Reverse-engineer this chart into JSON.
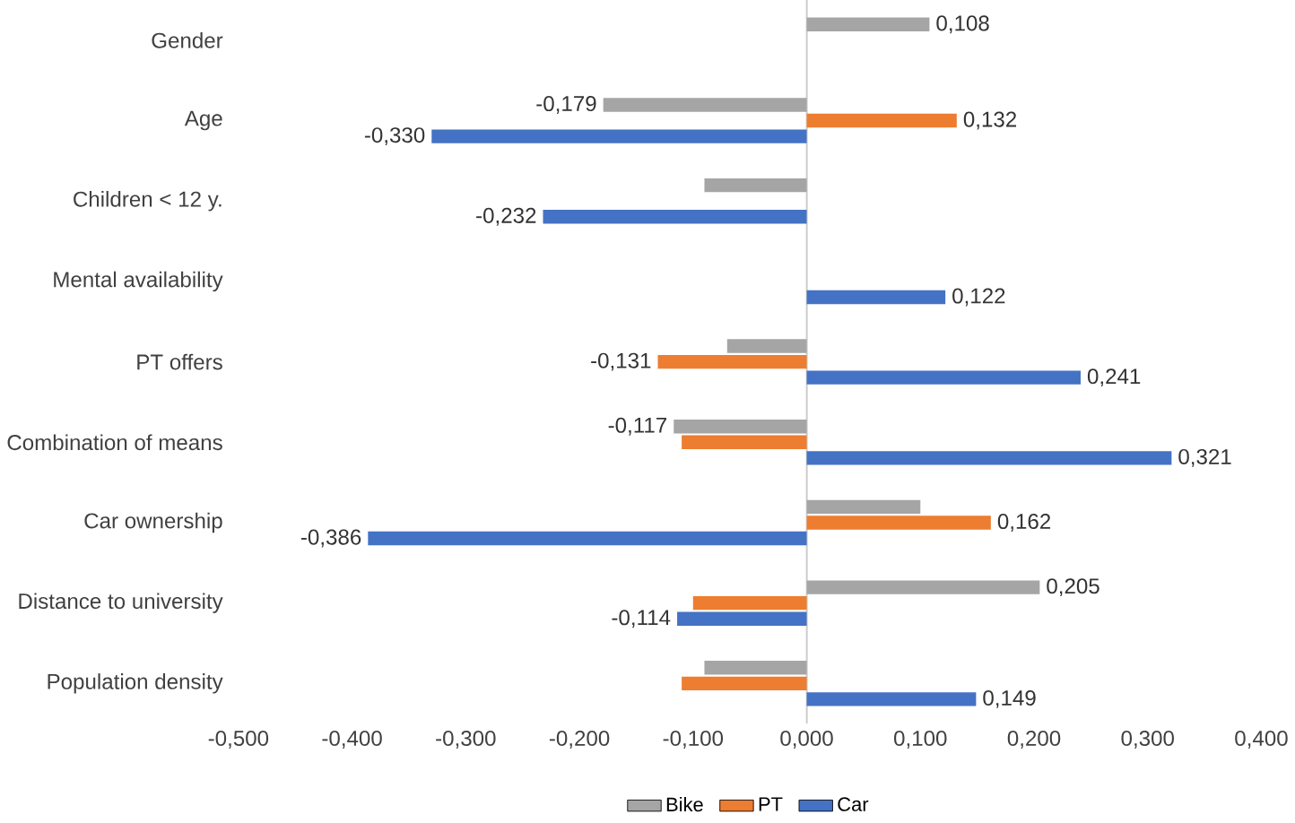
{
  "chart_data": {
    "type": "bar",
    "orientation": "horizontal",
    "categories": [
      "Gender",
      "Age",
      "Children < 12 y.",
      "Mental availability",
      "PT offers",
      "Combination of means",
      "Car ownership",
      "Distance to university",
      "Population density"
    ],
    "series": [
      {
        "name": "Bike",
        "color": "#a5a5a5",
        "values": [
          0.108,
          -0.179,
          -0.09,
          null,
          -0.07,
          -0.117,
          0.1,
          0.205,
          -0.09
        ],
        "value_labels": [
          "0,108",
          "-0,179",
          null,
          null,
          null,
          "-0,117",
          null,
          "0,205",
          null
        ]
      },
      {
        "name": "PT",
        "color": "#ed7d31",
        "values": [
          null,
          0.132,
          null,
          null,
          -0.131,
          -0.11,
          0.162,
          -0.1,
          -0.11
        ],
        "value_labels": [
          null,
          "0,132",
          null,
          null,
          "-0,131",
          null,
          "0,162",
          null,
          null
        ]
      },
      {
        "name": "Car",
        "color": "#4472c4",
        "values": [
          null,
          -0.33,
          -0.232,
          0.122,
          0.241,
          0.321,
          -0.386,
          -0.114,
          0.149
        ],
        "value_labels": [
          null,
          "-0,330",
          "-0,232",
          "0,122",
          "0,241",
          "0,321",
          "-0,386",
          "-0,114",
          "0,149"
        ]
      }
    ],
    "xlim": [
      -0.5,
      0.4
    ],
    "xticks": [
      {
        "value": -0.5,
        "label": "-0,500"
      },
      {
        "value": -0.4,
        "label": "-0,400"
      },
      {
        "value": -0.3,
        "label": "-0,300"
      },
      {
        "value": -0.2,
        "label": "-0,200"
      },
      {
        "value": -0.1,
        "label": "-0,100"
      },
      {
        "value": 0,
        "label": "0,000"
      },
      {
        "value": 0.1,
        "label": "0,100"
      },
      {
        "value": 0.2,
        "label": "0,200"
      },
      {
        "value": 0.3,
        "label": "0,300"
      },
      {
        "value": 0.4,
        "label": "0,400"
      }
    ],
    "legend": "bottom"
  }
}
